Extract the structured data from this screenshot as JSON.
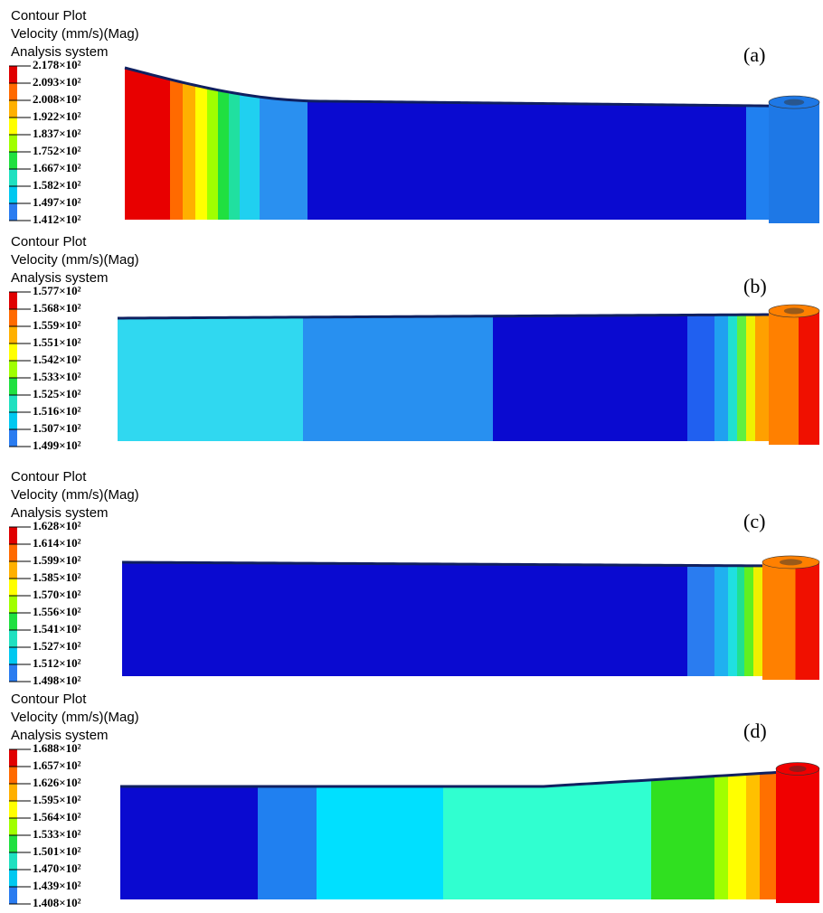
{
  "panels": [
    {
      "header": [
        "Contour Plot",
        "Velocity (mm/s)(Mag)",
        "Analysis system"
      ],
      "label": "(a)",
      "legend": [
        "2.178×10²",
        "2.093×10²",
        "2.008×10²",
        "1.922×10²",
        "1.837×10²",
        "1.752×10²",
        "1.667×10²",
        "1.582×10²",
        "1.497×10²",
        "1.412×10²"
      ]
    },
    {
      "header": [
        "Contour Plot",
        "Velocity (mm/s)(Mag)",
        "Analysis system"
      ],
      "label": "(b)",
      "legend": [
        "1.577×10²",
        "1.568×10²",
        "1.559×10²",
        "1.551×10²",
        "1.542×10²",
        "1.533×10²",
        "1.525×10²",
        "1.516×10²",
        "1.507×10²",
        "1.499×10²"
      ]
    },
    {
      "header": [
        "Contour Plot",
        "Velocity (mm/s)(Mag)",
        "Analysis system"
      ],
      "label": "(c)",
      "legend": [
        "1.628×10²",
        "1.614×10²",
        "1.599×10²",
        "1.585×10²",
        "1.570×10²",
        "1.556×10²",
        "1.541×10²",
        "1.527×10²",
        "1.512×10²",
        "1.498×10²"
      ]
    },
    {
      "header": [
        "Contour Plot",
        "Velocity (mm/s)(Mag)",
        "Analysis system"
      ],
      "label": "(d)",
      "legend": [
        "1.688×10²",
        "1.657×10²",
        "1.626×10²",
        "1.595×10²",
        "1.564×10²",
        "1.533×10²",
        "1.501×10²",
        "1.470×10²",
        "1.439×10²",
        "1.408×10²"
      ]
    }
  ]
}
